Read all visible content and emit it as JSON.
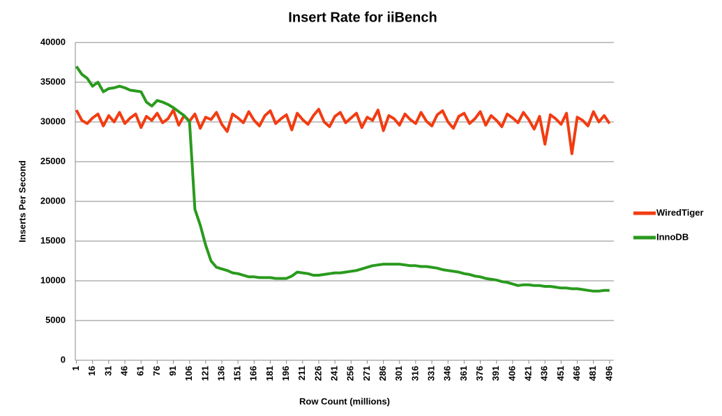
{
  "chart_data": {
    "type": "line",
    "title": "Insert Rate for iiBench",
    "x_label": "Row Count (millions)",
    "y_label": "Inserts Per Second",
    "x": [
      1,
      6,
      11,
      16,
      21,
      26,
      31,
      36,
      41,
      46,
      51,
      56,
      61,
      66,
      71,
      76,
      81,
      86,
      91,
      96,
      101,
      106,
      111,
      116,
      121,
      126,
      131,
      136,
      141,
      146,
      151,
      156,
      161,
      166,
      171,
      176,
      181,
      186,
      191,
      196,
      201,
      206,
      211,
      216,
      221,
      226,
      231,
      236,
      241,
      246,
      251,
      256,
      261,
      266,
      271,
      276,
      281,
      286,
      291,
      296,
      301,
      306,
      311,
      316,
      321,
      326,
      331,
      336,
      341,
      346,
      351,
      356,
      361,
      366,
      371,
      376,
      381,
      386,
      391,
      396,
      401,
      406,
      411,
      416,
      421,
      426,
      431,
      436,
      441,
      446,
      451,
      456,
      461,
      466,
      471,
      476,
      481,
      486,
      491,
      496
    ],
    "series": [
      {
        "name": "WiredTiger",
        "color": "#f23c12",
        "values": [
          31500,
          30200,
          29800,
          30500,
          31000,
          29500,
          30800,
          30000,
          31200,
          29800,
          30500,
          31000,
          29300,
          30700,
          30200,
          31100,
          29900,
          30400,
          31500,
          29600,
          30800,
          30100,
          31000,
          29200,
          30600,
          30300,
          31200,
          29700,
          28800,
          31000,
          30500,
          29900,
          31300,
          30200,
          29500,
          30800,
          31400,
          29800,
          30400,
          30900,
          29000,
          31100,
          30300,
          29700,
          30800,
          31600,
          30000,
          29400,
          30700,
          31200,
          29900,
          30500,
          31100,
          29300,
          30600,
          30200,
          31500,
          28900,
          30800,
          30400,
          29600,
          31000,
          30300,
          29800,
          31200,
          30100,
          29500,
          30900,
          31400,
          30000,
          29200,
          30700,
          31100,
          29800,
          30400,
          31300,
          29600,
          30800,
          30200,
          29400,
          31000,
          30500,
          29900,
          31200,
          30300,
          29100,
          30700,
          27200,
          30900,
          30400,
          29700,
          31100,
          26000,
          30600,
          30200,
          29500,
          31300,
          30000,
          30800,
          29800
        ]
      },
      {
        "name": "InnoDB",
        "color": "#2a9a1e",
        "values": [
          37000,
          36000,
          35500,
          34500,
          35000,
          33800,
          34200,
          34300,
          34500,
          34300,
          34000,
          33900,
          33800,
          32500,
          32000,
          32700,
          32500,
          32200,
          31800,
          31300,
          30800,
          30000,
          19000,
          17000,
          14500,
          12500,
          11700,
          11500,
          11300,
          11000,
          10900,
          10700,
          10500,
          10500,
          10400,
          10400,
          10400,
          10300,
          10300,
          10300,
          10600,
          11100,
          11000,
          10900,
          10700,
          10700,
          10800,
          10900,
          11000,
          11000,
          11100,
          11200,
          11300,
          11500,
          11700,
          11900,
          12000,
          12100,
          12100,
          12100,
          12100,
          12000,
          11900,
          11900,
          11800,
          11800,
          11700,
          11600,
          11400,
          11300,
          11200,
          11100,
          10900,
          10800,
          10600,
          10500,
          10300,
          10200,
          10100,
          9900,
          9800,
          9600,
          9400,
          9500,
          9500,
          9400,
          9400,
          9300,
          9300,
          9200,
          9100,
          9100,
          9000,
          9000,
          8900,
          8800,
          8700,
          8700,
          8800,
          8800
        ]
      }
    ],
    "xlim": [
      0,
      500
    ],
    "xticks": [
      1,
      16,
      31,
      46,
      61,
      76,
      91,
      106,
      121,
      136,
      151,
      166,
      181,
      196,
      211,
      226,
      241,
      256,
      271,
      286,
      301,
      316,
      331,
      346,
      361,
      376,
      391,
      406,
      421,
      436,
      451,
      466,
      481,
      496
    ],
    "ylim": [
      0,
      40000
    ],
    "yticks": [
      0,
      5000,
      10000,
      15000,
      20000,
      25000,
      30000,
      35000,
      40000
    ],
    "grid": true,
    "legend": "right"
  }
}
